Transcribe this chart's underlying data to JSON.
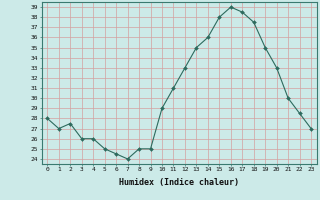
{
  "x": [
    0,
    1,
    2,
    3,
    4,
    5,
    6,
    7,
    8,
    9,
    10,
    11,
    12,
    13,
    14,
    15,
    16,
    17,
    18,
    19,
    20,
    21,
    22,
    23
  ],
  "y": [
    28,
    27,
    27.5,
    26,
    26,
    25,
    24.5,
    24,
    25,
    25,
    29,
    31,
    33,
    35,
    36,
    38,
    39,
    38.5,
    37.5,
    35,
    33,
    30,
    28.5,
    27
  ],
  "line_color": "#2d6b5e",
  "marker": "D",
  "marker_size": 2.0,
  "bg_color": "#cceae8",
  "grid_major_color": "#f0b0b0",
  "grid_minor_color": "#d8e8e8",
  "xlabel": "Humidex (Indice chaleur)",
  "ylabel_ticks": [
    24,
    25,
    26,
    27,
    28,
    29,
    30,
    31,
    32,
    33,
    34,
    35,
    36,
    37,
    38,
    39
  ],
  "xlim": [
    -0.5,
    23.5
  ],
  "ylim": [
    23.5,
    39.5
  ],
  "title": ""
}
